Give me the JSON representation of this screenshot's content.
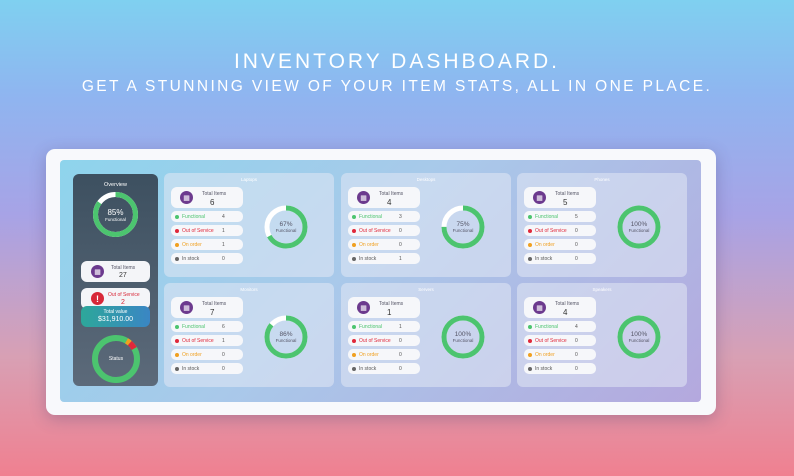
{
  "hero": {
    "title": "INVENTORY DASHBOARD.",
    "subtitle": "GET A STUNNING VIEW OF YOUR ITEM STATS, ALL IN ONE PLACE."
  },
  "colors": {
    "functional": "#4cc46f",
    "out_of_service": "#e0283a",
    "on_order": "#f0a020",
    "in_stock": "#666666",
    "icon_purple": "#6c3a8e"
  },
  "sidebar": {
    "overview_title": "Overview",
    "functional_percent": 85,
    "functional_percent_label": "85%",
    "functional_label": "Functional",
    "total_items_label": "Total Items",
    "total_items_value": "27",
    "out_of_service_label": "Out of Service",
    "out_of_service_value": "2",
    "total_value_label": "Total value",
    "total_value": "$31,910.00",
    "status_label": "Status"
  },
  "labels": {
    "total_items": "Total Items",
    "functional": "Functional",
    "out_of_service": "Out of Service",
    "on_order": "On order",
    "in_stock": "In stock",
    "ring_caption": "Functional"
  },
  "cards": [
    {
      "title": "Laptops",
      "total": "6",
      "functional": "4",
      "out_of_service": "1",
      "on_order": "1",
      "in_stock": "0",
      "percent": 67,
      "percent_label": "67%"
    },
    {
      "title": "Desktops",
      "total": "4",
      "functional": "3",
      "out_of_service": "0",
      "on_order": "0",
      "in_stock": "1",
      "percent": 75,
      "percent_label": "75%"
    },
    {
      "title": "Phones",
      "total": "5",
      "functional": "5",
      "out_of_service": "0",
      "on_order": "0",
      "in_stock": "0",
      "percent": 100,
      "percent_label": "100%"
    },
    {
      "title": "Monitors",
      "total": "7",
      "functional": "6",
      "out_of_service": "1",
      "on_order": "0",
      "in_stock": "0",
      "percent": 86,
      "percent_label": "86%"
    },
    {
      "title": "Servers",
      "total": "1",
      "functional": "1",
      "out_of_service": "0",
      "on_order": "0",
      "in_stock": "0",
      "percent": 100,
      "percent_label": "100%"
    },
    {
      "title": "Speakers",
      "total": "4",
      "functional": "4",
      "out_of_service": "0",
      "on_order": "0",
      "in_stock": "0",
      "percent": 100,
      "percent_label": "100%"
    }
  ]
}
